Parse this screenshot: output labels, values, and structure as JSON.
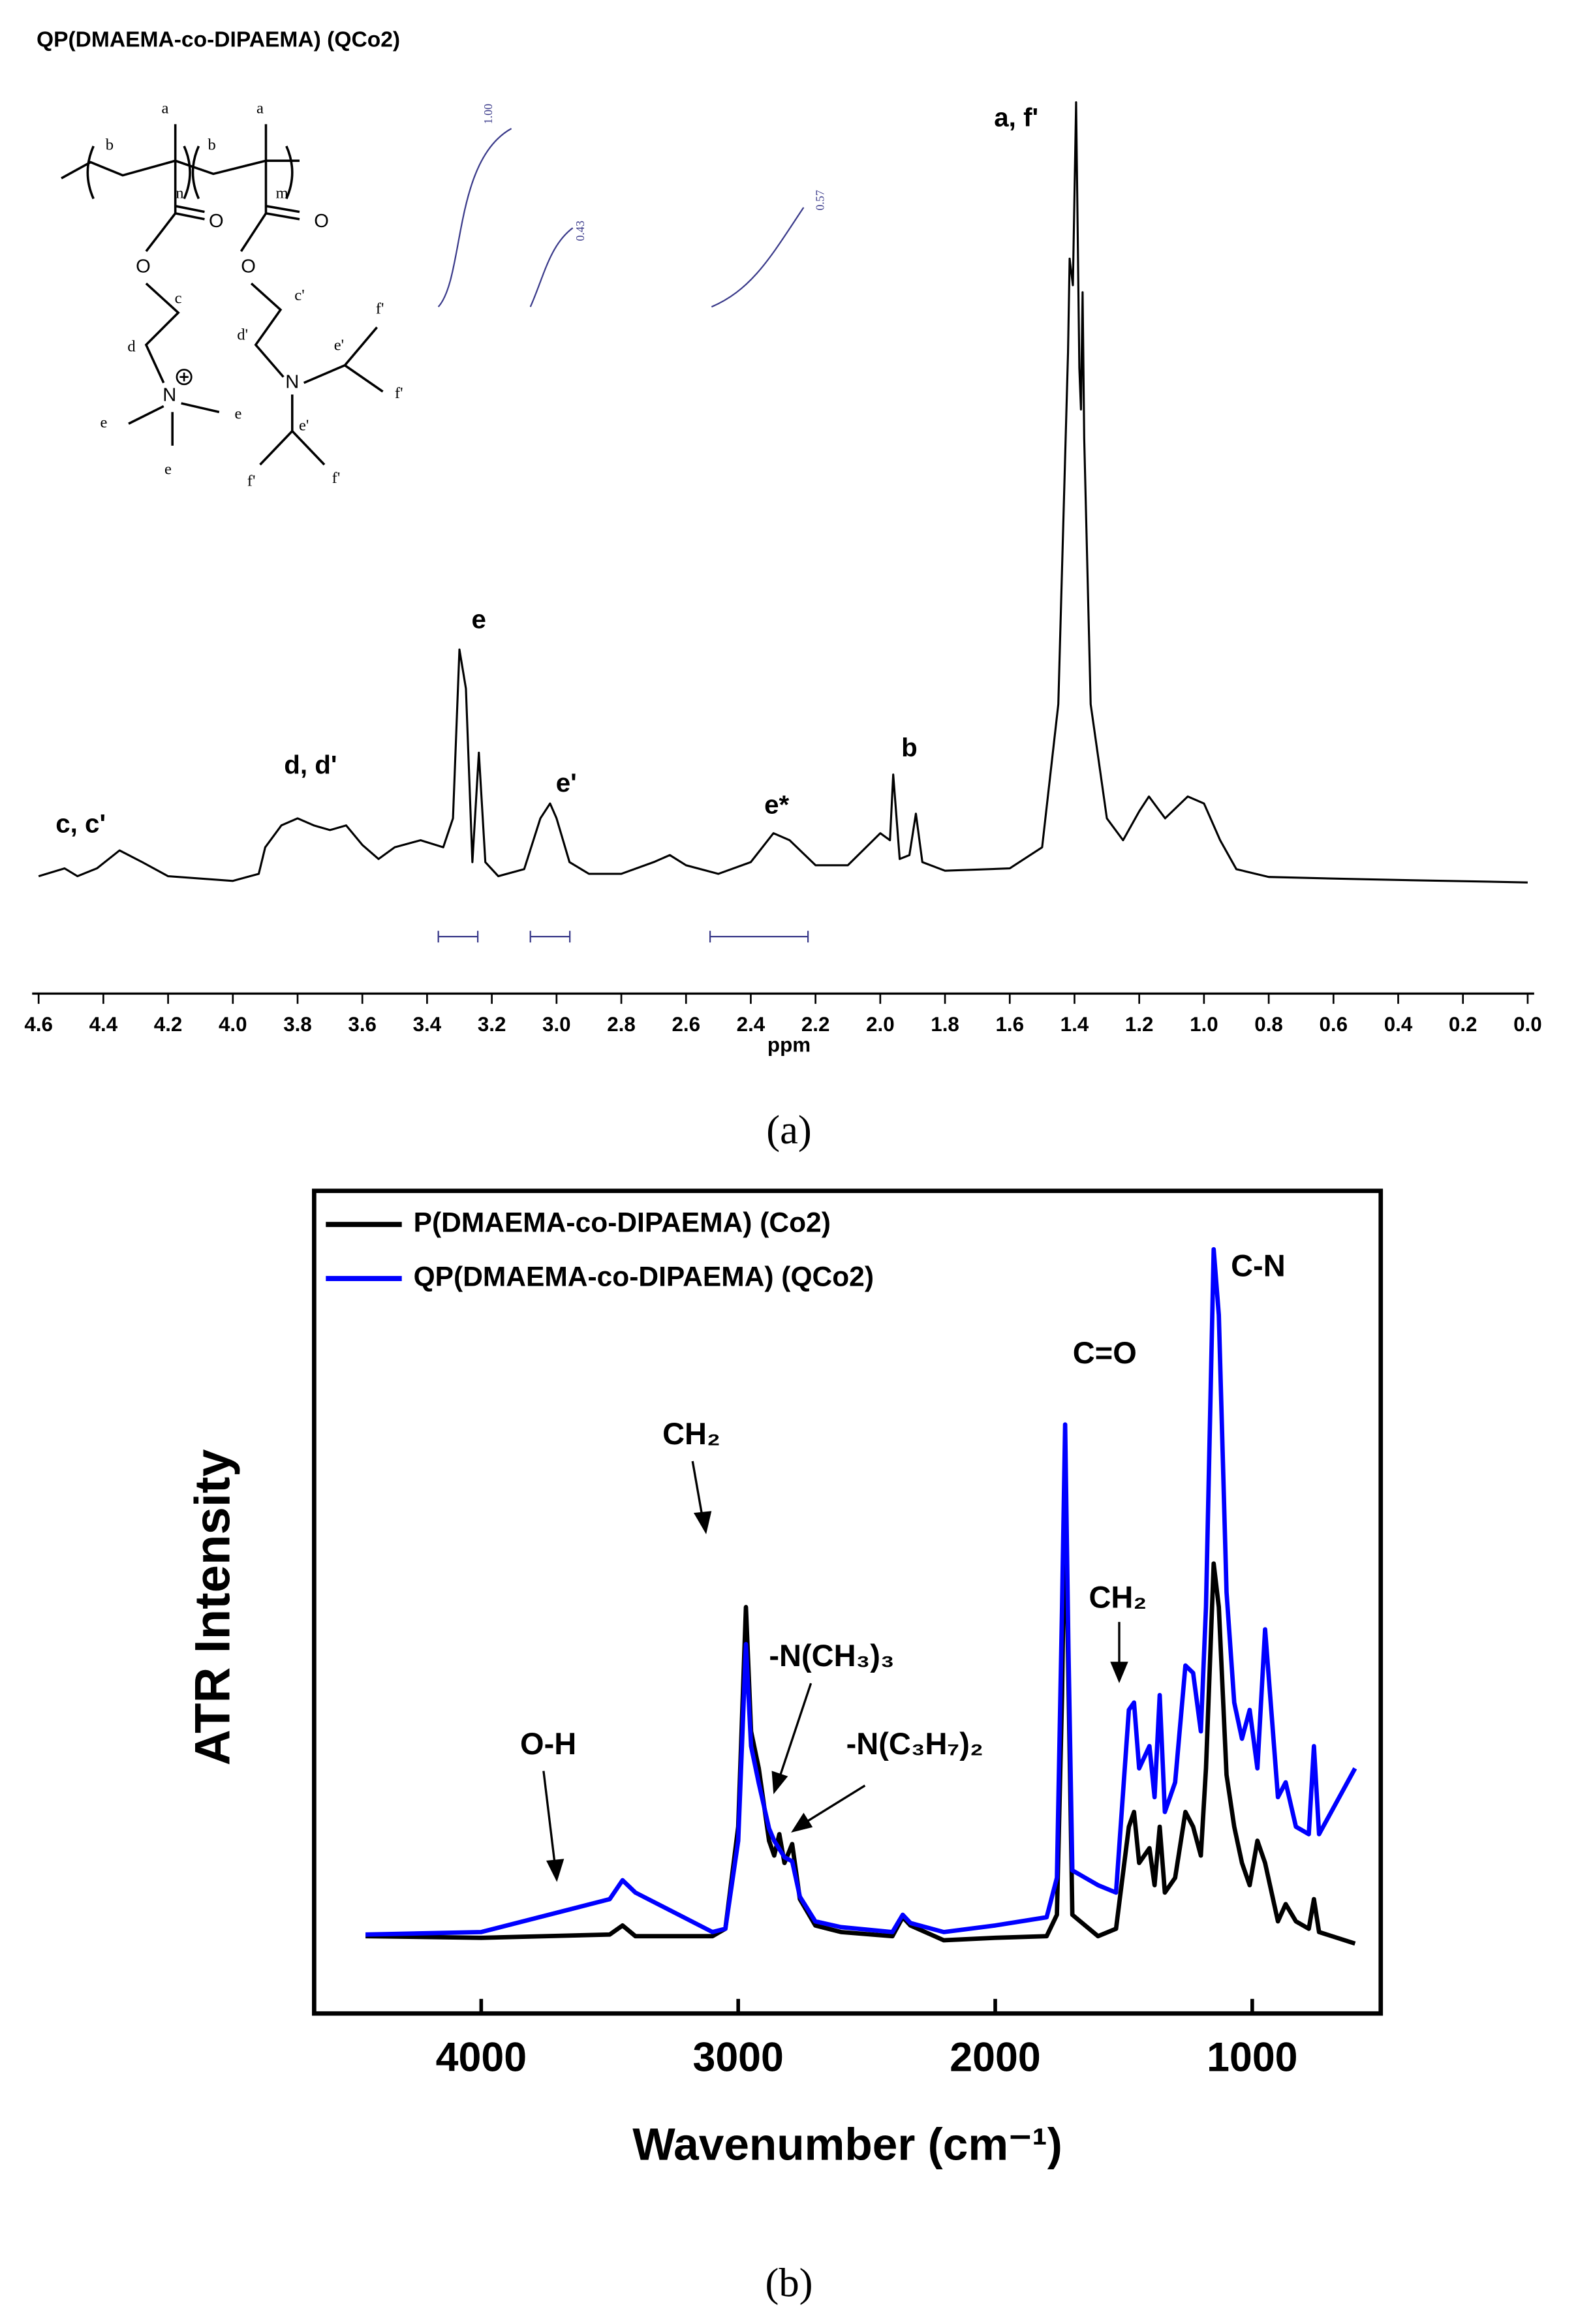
{
  "chart_data": [
    {
      "type": "line",
      "title": "QP(DMAEMA-co-DIPAEMA) (QCo2)",
      "x_label": "ppm",
      "panel_label": "(a)",
      "xlim": [
        4.62,
        -0.02
      ],
      "xticks": [
        4.6,
        4.4,
        4.2,
        {
          "value": 4,
          "label": "4.0"
        },
        3.8,
        3.6,
        3.4,
        3.2,
        {
          "value": 3,
          "label": "3.0"
        },
        2.8,
        2.6,
        2.4,
        2.2,
        {
          "value": 2,
          "label": "2.0"
        },
        1.8,
        1.6,
        1.4,
        1.2,
        {
          "value": 1,
          "label": "1.0"
        },
        0.8,
        0.6,
        0.4,
        0.2,
        {
          "value": 0,
          "label": "0.0"
        }
      ],
      "ylim": [
        0,
        100
      ],
      "x": [
        4.6,
        4.52,
        4.48,
        4.42,
        4.35,
        4.28,
        4.2,
        4.0,
        3.92,
        3.9,
        3.85,
        3.8,
        3.75,
        3.7,
        3.65,
        3.6,
        3.55,
        3.5,
        3.42,
        3.35,
        3.32,
        3.3,
        3.28,
        3.26,
        3.24,
        3.22,
        3.18,
        3.1,
        3.05,
        3.02,
        3.0,
        2.96,
        2.9,
        2.8,
        2.7,
        2.65,
        2.6,
        2.5,
        2.4,
        2.33,
        2.28,
        2.2,
        2.1,
        2.0,
        1.97,
        1.96,
        1.94,
        1.91,
        1.89,
        1.87,
        1.8,
        1.6,
        1.5,
        1.45,
        1.42,
        1.415,
        1.405,
        1.395,
        1.385,
        1.38,
        1.375,
        1.37,
        1.35,
        1.3,
        1.25,
        1.2,
        1.17,
        1.12,
        1.05,
        1.0,
        0.95,
        0.9,
        0.8,
        0.5,
        0.0
      ],
      "series": [
        {
          "color": "#000000",
          "values": [
            1,
            2,
            1,
            2,
            4.3,
            2.8,
            1,
            0.4,
            1.3,
            4.7,
            7.5,
            8.4,
            7.5,
            6.9,
            7.5,
            5,
            3.2,
            4.7,
            5.6,
            4.7,
            8.4,
            30,
            25,
            2.8,
            16.8,
            2.8,
            1,
            1.9,
            8.4,
            10.3,
            8.4,
            2.8,
            1.3,
            1.3,
            2.8,
            3.7,
            2.4,
            1.3,
            2.8,
            6.5,
            5.6,
            2.4,
            2.4,
            6.5,
            5.6,
            14,
            3.2,
            3.7,
            9,
            2.8,
            1.7,
            2,
            4.7,
            23,
            68,
            80,
            76.6,
            100,
            66,
            60.7,
            75.7,
            57,
            23,
            8.4,
            5.6,
            9.3,
            11.2,
            8.4,
            11.2,
            10.3,
            5.6,
            1.9,
            0.9,
            0.6,
            0.2
          ]
        }
      ],
      "annotations": [
        {
          "text": "c, c'",
          "x": 4.47,
          "y": 7.5
        },
        {
          "text": "d, d'",
          "x": 3.76,
          "y": 15
        },
        {
          "text": "e",
          "x": 3.24,
          "y": 33.6
        },
        {
          "text": "e'",
          "x": 2.97,
          "y": 12.7
        },
        {
          "text": "e*",
          "x": 2.32,
          "y": 9.9
        },
        {
          "text": "b",
          "x": 1.91,
          "y": 17.2
        },
        {
          "text": "a, f'",
          "x": 1.58,
          "y": 97.8
        }
      ],
      "integral_labels": [
        "1.00",
        "0.43",
        "0.57"
      ],
      "structure_labels": [
        "b",
        "a",
        "n",
        "b",
        "a",
        "m",
        "O",
        "O",
        "O",
        "O",
        "c",
        "c'",
        "d",
        "d'",
        "N",
        "e",
        "e",
        "e",
        "N",
        "e'",
        "e'",
        "f'",
        "f'",
        "f'",
        "f'"
      ]
    },
    {
      "type": "line",
      "x_label": "Wavenumber (cm⁻¹)",
      "y_label": "ATR Intensity",
      "panel_label": "(b)",
      "xlim": [
        4650,
        500
      ],
      "xticks": [
        4000,
        3000,
        2000,
        1000
      ],
      "ylim": [
        0,
        100
      ],
      "legend": "upper left",
      "x": [
        4450,
        4000,
        3500,
        3450,
        3400,
        3100,
        3050,
        3000,
        2970,
        2950,
        2920,
        2880,
        2860,
        2840,
        2820,
        2790,
        2760,
        2700,
        2600,
        2400,
        2360,
        2330,
        2200,
        2000,
        1800,
        1760,
        1740,
        1728,
        1715,
        1700,
        1650,
        1600,
        1530,
        1480,
        1460,
        1440,
        1400,
        1380,
        1360,
        1340,
        1300,
        1260,
        1230,
        1200,
        1180,
        1150,
        1130,
        1100,
        1070,
        1040,
        1010,
        980,
        950,
        900,
        870,
        830,
        780,
        760,
        740,
        600
      ],
      "series": [
        {
          "name": "P(DMAEMA-co-DIPAEMA) (Co2)",
          "color": "#000000",
          "values": [
            9.4,
            9.2,
            9.6,
            10.7,
            9.4,
            9.4,
            10.3,
            22.7,
            49.4,
            34.3,
            29.8,
            21,
            19.2,
            21.8,
            18.3,
            20.6,
            13.9,
            10.7,
            9.9,
            9.4,
            11.7,
            10.7,
            8.9,
            9.2,
            9.4,
            12,
            38.7,
            64.5,
            40.3,
            12,
            10.7,
            9.4,
            10.3,
            22.7,
            24.5,
            18.3,
            20.1,
            15.6,
            22.7,
            14.7,
            16.5,
            24.5,
            22.7,
            19.2,
            29.8,
            54.7,
            49.4,
            29,
            22.7,
            18.3,
            15.6,
            21,
            18.3,
            11.2,
            13.3,
            11.2,
            10.3,
            13.9,
            9.9,
            8.5
          ]
        },
        {
          "name": "QP(DMAEMA-co-DIPAEMA) (QCo2)",
          "color": "#0000ff",
          "values": [
            9.6,
            9.9,
            13.9,
            16.2,
            14.7,
            9.9,
            10.3,
            21,
            44.9,
            32.5,
            28,
            22.5,
            21,
            20,
            19,
            18.5,
            14.2,
            11.2,
            10.5,
            9.9,
            12,
            11,
            9.9,
            10.7,
            11.7,
            16.5,
            49.4,
            71.6,
            44,
            17.4,
            16.5,
            15.6,
            14.7,
            36.9,
            37.8,
            29.8,
            32.5,
            26.3,
            38.7,
            24.5,
            28.1,
            42.3,
            41.4,
            34.3,
            49.4,
            92.9,
            84.9,
            51.2,
            37.8,
            33.4,
            36.9,
            29.8,
            46.7,
            26.3,
            28.1,
            22.7,
            21.8,
            32.5,
            21.8,
            29.8
          ]
        }
      ],
      "annotations": [
        {
          "text": "CH₂",
          "x": 3182,
          "y": 70.2
        },
        {
          "text": "C-N",
          "x": 977,
          "y": 90.6
        },
        {
          "text": "C=O",
          "x": 1574,
          "y": 80
        },
        {
          "text": "CH₂",
          "x": 1523,
          "y": 50.3
        },
        {
          "text": "-N(CH₃)₃",
          "x": 2636,
          "y": 43.2
        },
        {
          "text": "-N(C₃H₇)₂",
          "x": 2313,
          "y": 32.5
        },
        {
          "text": "O-H",
          "x": 3739,
          "y": 32.5
        }
      ]
    }
  ]
}
